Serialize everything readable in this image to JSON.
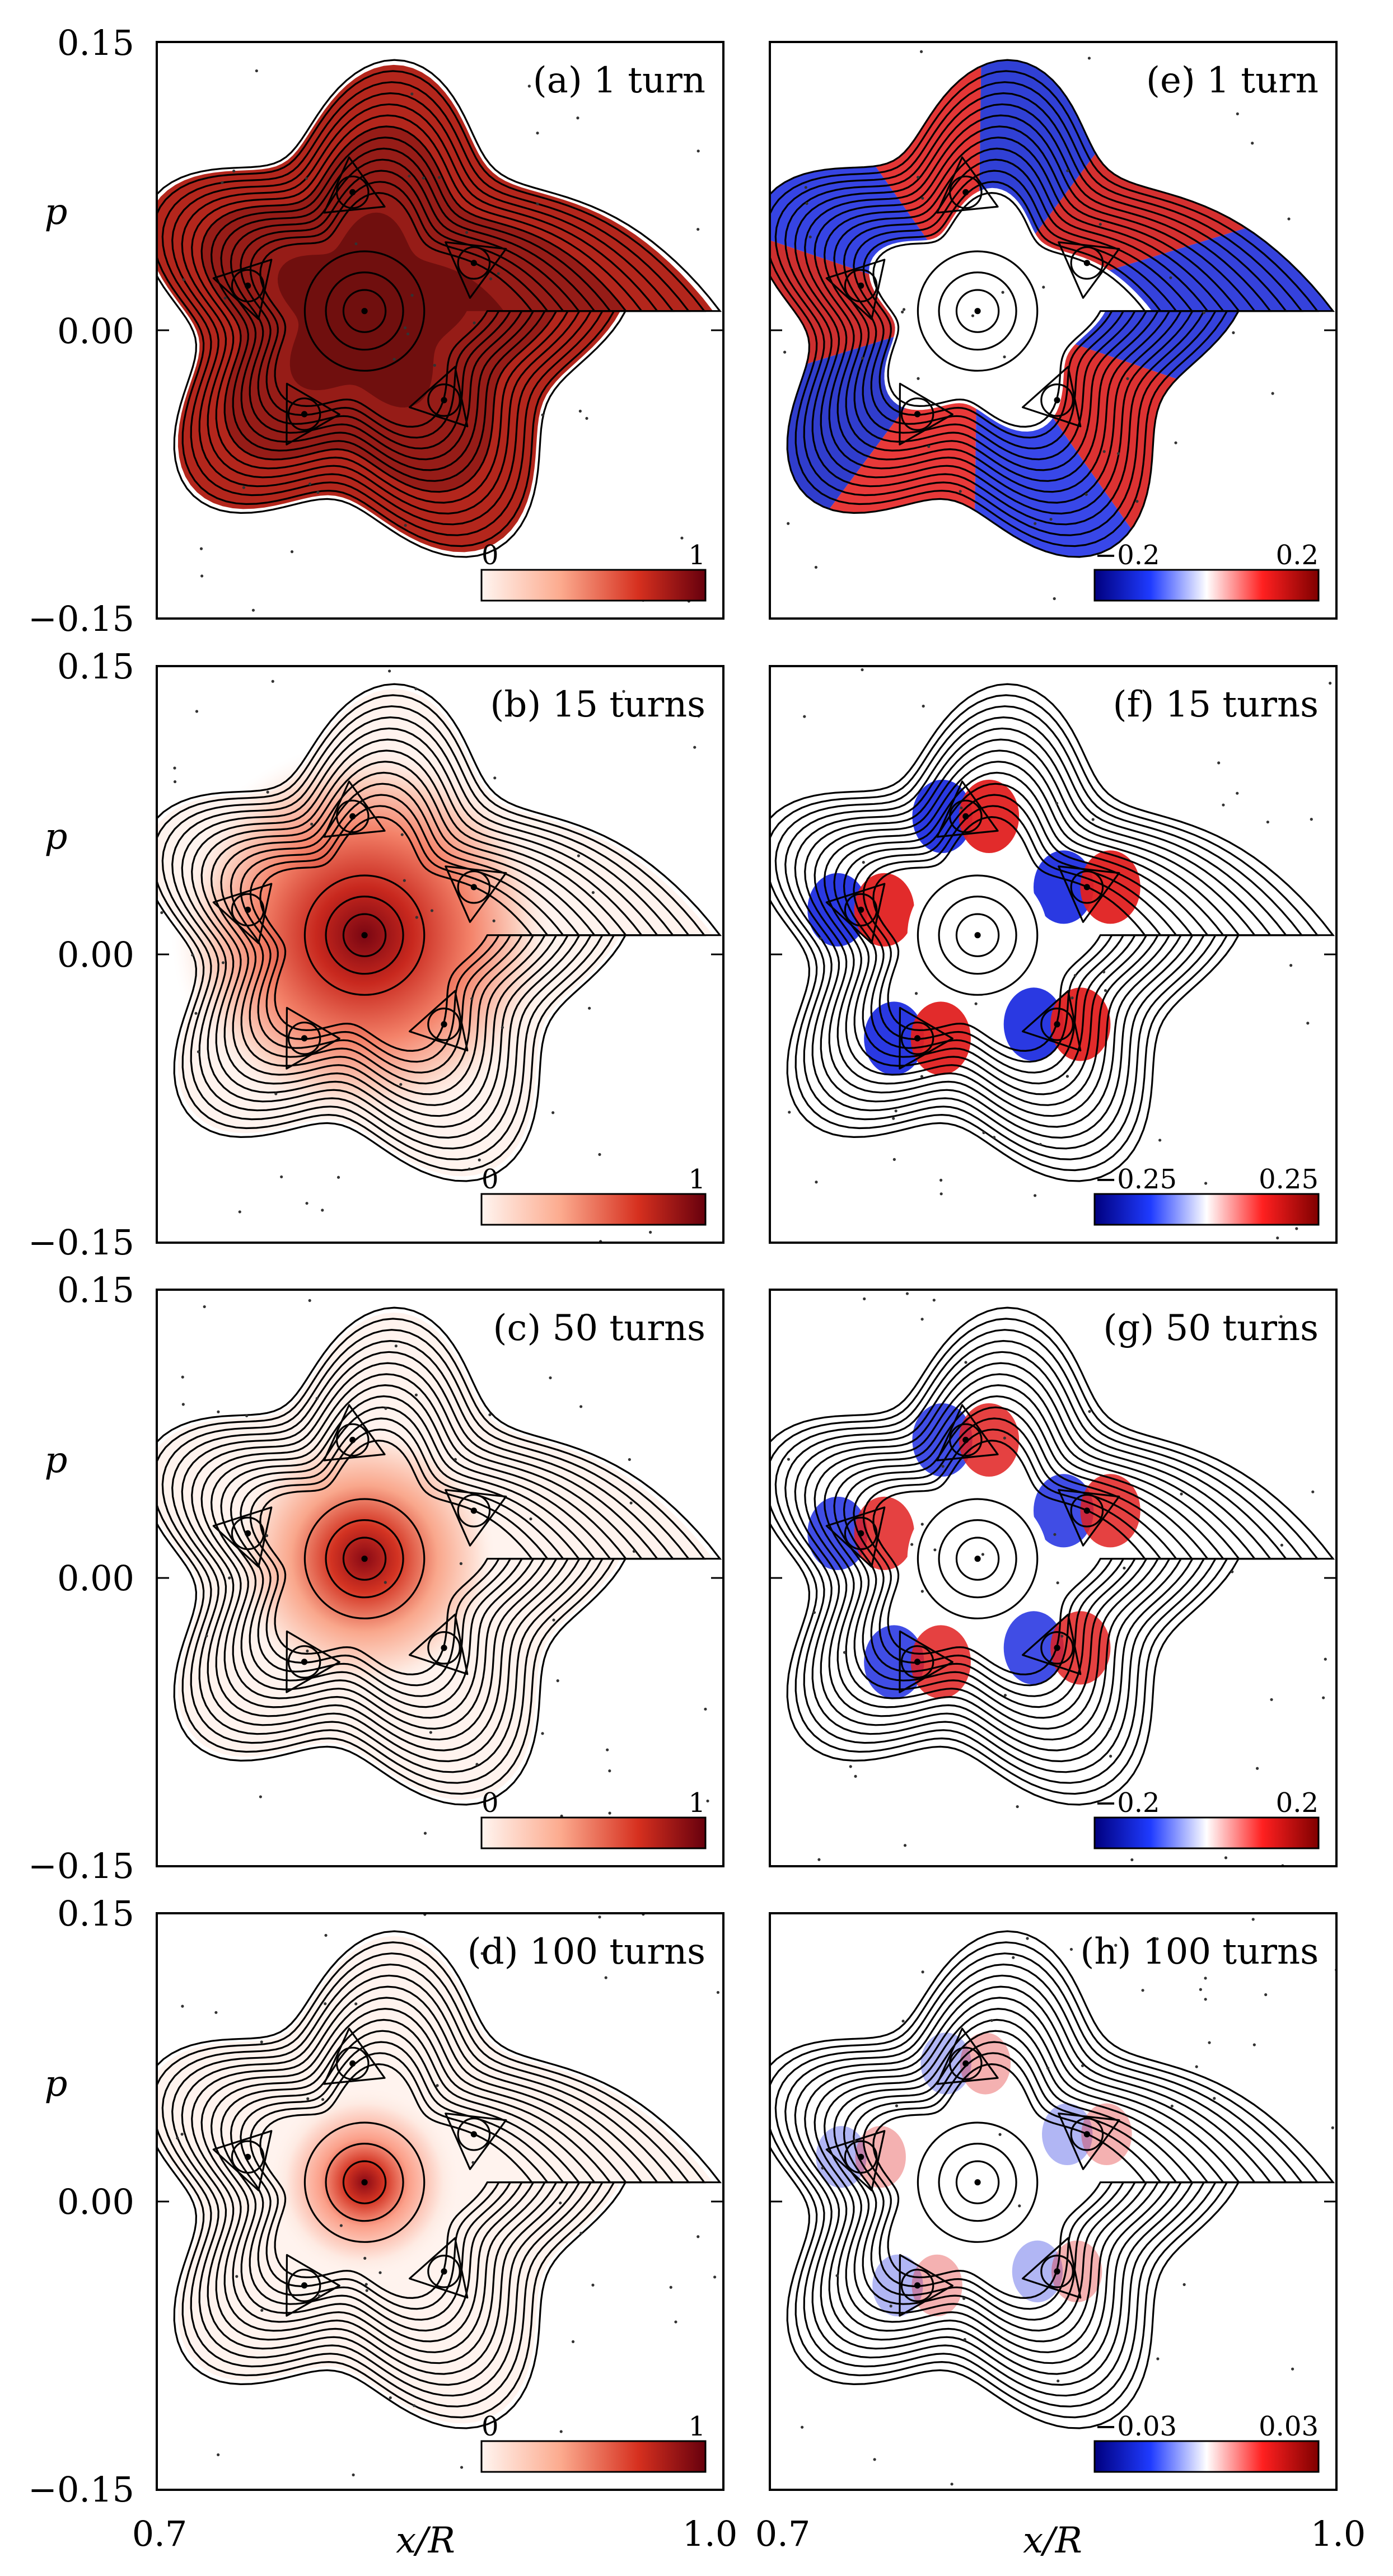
{
  "figure": {
    "xlabel": "x/R",
    "ylabel": "p",
    "x_ticks": [
      "0.7",
      "1.0"
    ],
    "y_ticks": [
      "0.15",
      "0.00",
      "−0.15"
    ],
    "xlim": [
      0.7,
      1.0
    ],
    "ylim": [
      -0.15,
      0.15
    ]
  },
  "chart_data": [
    {
      "id": "a",
      "type": "heatmap",
      "title": "(a) 1 turn",
      "colormap": "Reds",
      "colorbar": {
        "min": 0,
        "max": 1,
        "min_label": "0",
        "max_label": "1"
      },
      "center": [
        0.81,
        0.01
      ],
      "fill_extent": "full",
      "pattern": "uniform"
    },
    {
      "id": "b",
      "type": "heatmap",
      "title": "(b) 15 turns",
      "colormap": "Reds",
      "colorbar": {
        "min": 0,
        "max": 1,
        "min_label": "0",
        "max_label": "1"
      },
      "center": [
        0.81,
        0.01
      ],
      "fill_extent": "broad",
      "pattern": "peak"
    },
    {
      "id": "c",
      "type": "heatmap",
      "title": "(c) 50 turns",
      "colormap": "Reds",
      "colorbar": {
        "min": 0,
        "max": 1,
        "min_label": "0",
        "max_label": "1"
      },
      "center": [
        0.81,
        0.01
      ],
      "fill_extent": "medium",
      "pattern": "peak"
    },
    {
      "id": "d",
      "type": "heatmap",
      "title": "(d) 100 turns",
      "colormap": "Reds",
      "colorbar": {
        "min": 0,
        "max": 1,
        "min_label": "0",
        "max_label": "1"
      },
      "center": [
        0.81,
        0.01
      ],
      "fill_extent": "narrow",
      "pattern": "peak"
    },
    {
      "id": "e",
      "type": "heatmap",
      "title": "(e) 1 turn",
      "colormap": "bwr",
      "colorbar": {
        "min": -0.2,
        "max": 0.2,
        "min_label": "−0.2",
        "max_label": "0.2"
      },
      "center": [
        0.81,
        0.01
      ],
      "fill_extent": "full",
      "pattern": "sectors"
    },
    {
      "id": "f",
      "type": "heatmap",
      "title": "(f) 15 turns",
      "colormap": "bwr",
      "colorbar": {
        "min": -0.25,
        "max": 0.25,
        "min_label": "−0.25",
        "max_label": "0.25"
      },
      "center": [
        0.81,
        0.01
      ],
      "fill_extent": "islands",
      "pattern": "islands"
    },
    {
      "id": "g",
      "type": "heatmap",
      "title": "(g) 50 turns",
      "colormap": "bwr",
      "colorbar": {
        "min": -0.2,
        "max": 0.2,
        "min_label": "−0.2",
        "max_label": "0.2"
      },
      "center": [
        0.81,
        0.01
      ],
      "fill_extent": "islands",
      "pattern": "islands"
    },
    {
      "id": "h",
      "type": "heatmap",
      "title": "(h) 100 turns",
      "colormap": "bwr",
      "colorbar": {
        "min": -0.03,
        "max": 0.03,
        "min_label": "−0.03",
        "max_label": "0.03"
      },
      "center": [
        0.81,
        0.01
      ],
      "fill_extent": "islands",
      "pattern": "faint"
    }
  ]
}
